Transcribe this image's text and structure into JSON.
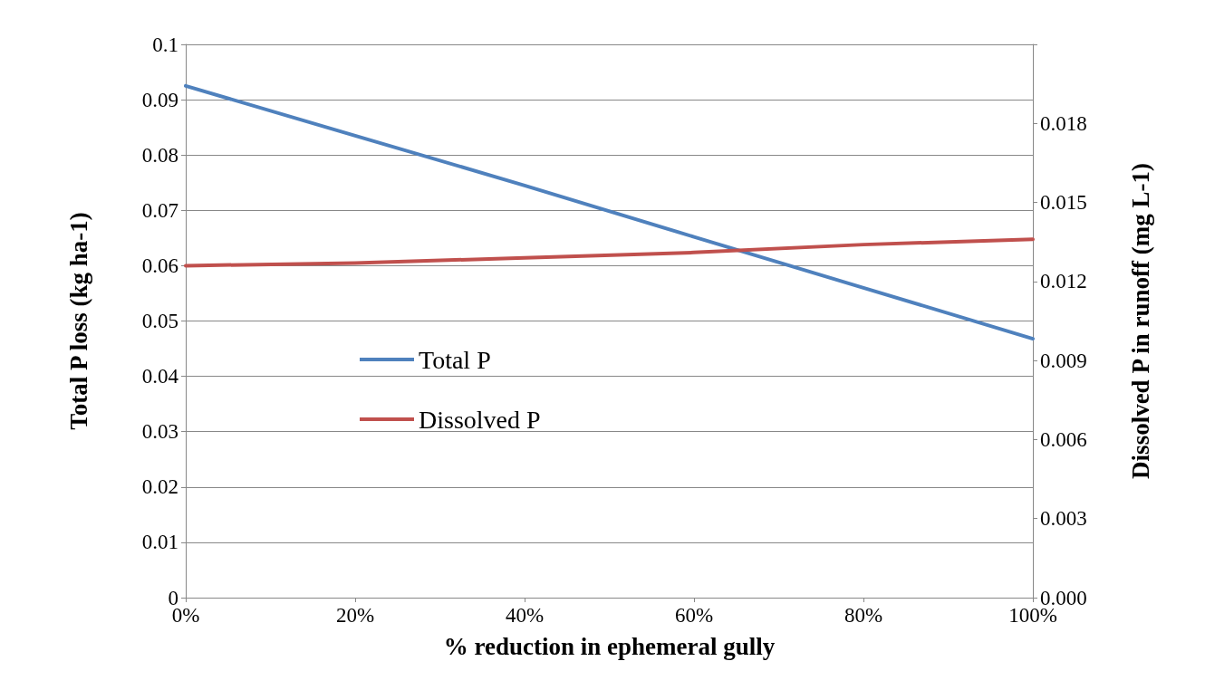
{
  "chart_data": {
    "type": "line",
    "xlabel": "% reduction in ephemeral gully",
    "ylabel": "Total P loss (kg ha-1)",
    "y2label": "Dissolved P in runoff (mg L-1)",
    "x": [
      0,
      20,
      40,
      60,
      80,
      100
    ],
    "series": [
      {
        "name": "Total P",
        "color": "#4f81bd",
        "values": [
          0.0925,
          0.0835,
          0.0745,
          0.0652,
          0.056,
          0.0468
        ]
      },
      {
        "name": "Dissolved P",
        "color": "#c0504d",
        "axis": "y2",
        "values": [
          0.0126,
          0.0127,
          0.0129,
          0.0131,
          0.0134,
          0.0136
        ]
      }
    ],
    "xlim": [
      0,
      100
    ],
    "xticks": [
      {
        "value": 0,
        "label": "0%"
      },
      {
        "value": 20,
        "label": "20%"
      },
      {
        "value": 40,
        "label": "40%"
      },
      {
        "value": 60,
        "label": "60%"
      },
      {
        "value": 80,
        "label": "80%"
      },
      {
        "value": 100,
        "label": "100%"
      }
    ],
    "ylim": [
      0,
      0.1
    ],
    "yticks": [
      0,
      0.01,
      0.02,
      0.03,
      0.04,
      0.05,
      0.06,
      0.07,
      0.08,
      0.09,
      0.1
    ],
    "y2lim": [
      0,
      0.021
    ],
    "y2ticks": [
      {
        "value": 0,
        "label": "0.000"
      },
      {
        "value": 0.003,
        "label": "0.003"
      },
      {
        "value": 0.006,
        "label": "0.006"
      },
      {
        "value": 0.009,
        "label": "0.009"
      },
      {
        "value": 0.012,
        "label": "0.012"
      },
      {
        "value": 0.015,
        "label": "0.015"
      },
      {
        "value": 0.018,
        "label": "0.018"
      },
      {
        "value": 0.021,
        "label": null
      }
    ],
    "grid": "y",
    "legend": "center",
    "marker": "none",
    "line_style": "solid"
  }
}
